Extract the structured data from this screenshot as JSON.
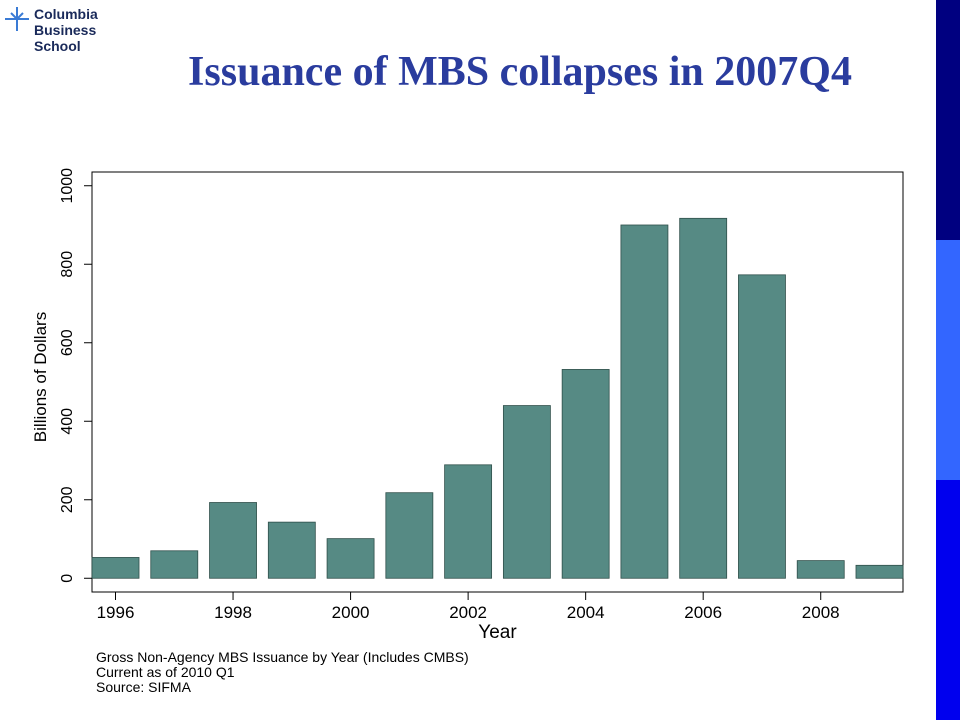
{
  "logo": {
    "lines": [
      "Columbia",
      "Business",
      "School"
    ],
    "icon": "columbia-crown-cross-icon",
    "color": "#1a2a5a",
    "icon_color": "#3a7bd5"
  },
  "title": "Issuance of MBS collapses in 2007Q4",
  "colors": {
    "title": "#2a3c9e",
    "bar_fill": "#568a84",
    "sidebar": [
      "#000080",
      "#3366ff",
      "#0000ee"
    ]
  },
  "notes": [
    "Gross Non-Agency MBS Issuance by Year (Includes CMBS)",
    "Current as of 2010 Q1",
    "Source: SIFMA"
  ],
  "chart_data": {
    "type": "bar",
    "x": [
      1996,
      1997,
      1998,
      1999,
      2000,
      2001,
      2002,
      2003,
      2004,
      2005,
      2006,
      2007,
      2008,
      2009
    ],
    "values": [
      53,
      70,
      193,
      143,
      101,
      218,
      289,
      440,
      532,
      900,
      917,
      773,
      45,
      33
    ],
    "xlabel": "Year",
    "ylabel": "Billions of Dollars",
    "xticks": [
      1996,
      1998,
      2000,
      2002,
      2004,
      2006,
      2008
    ],
    "yticks": [
      0,
      200,
      400,
      600,
      800,
      1000
    ],
    "xlim": [
      1995.6,
      2009.4
    ],
    "ylim": [
      -35,
      1035
    ],
    "grid": false,
    "legend": "none"
  }
}
